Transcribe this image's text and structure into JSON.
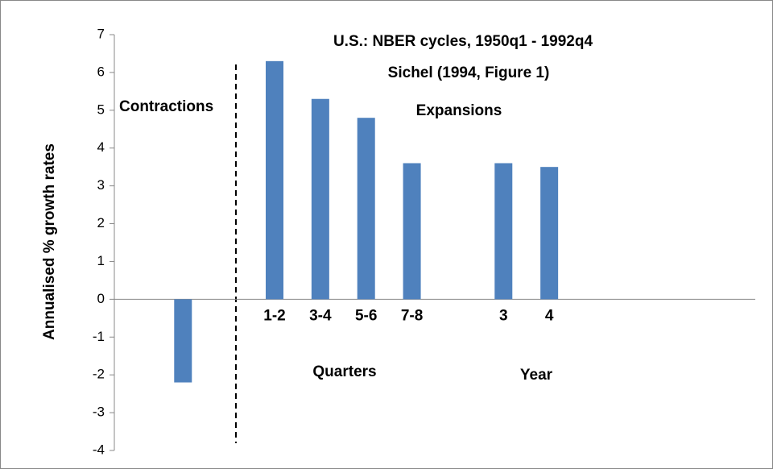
{
  "chart_data": {
    "type": "bar",
    "title": "U.S.: NBER cycles, 1950q1 - 1992q4",
    "subtitle": "Sichel (1994, Figure 1)",
    "y_label": "Annualised % growth rates",
    "annotations": [
      "Contractions",
      "Expansions",
      "Quarters",
      "Year"
    ],
    "categories": [
      null,
      null,
      null,
      "1-2",
      "3-4",
      "5-6",
      "7-8",
      null,
      "3",
      "4",
      null,
      null,
      null,
      null
    ],
    "values": [
      null,
      -2.2,
      null,
      6.3,
      5.3,
      4.8,
      3.6,
      null,
      3.6,
      3.5,
      null,
      null,
      null,
      null
    ],
    "color": "#4f81bd",
    "ylim": [
      -4,
      7
    ],
    "yticks": [
      -4,
      -3,
      -2,
      -1,
      0,
      1,
      2,
      3,
      4,
      5,
      6,
      7
    ],
    "grid": false
  }
}
